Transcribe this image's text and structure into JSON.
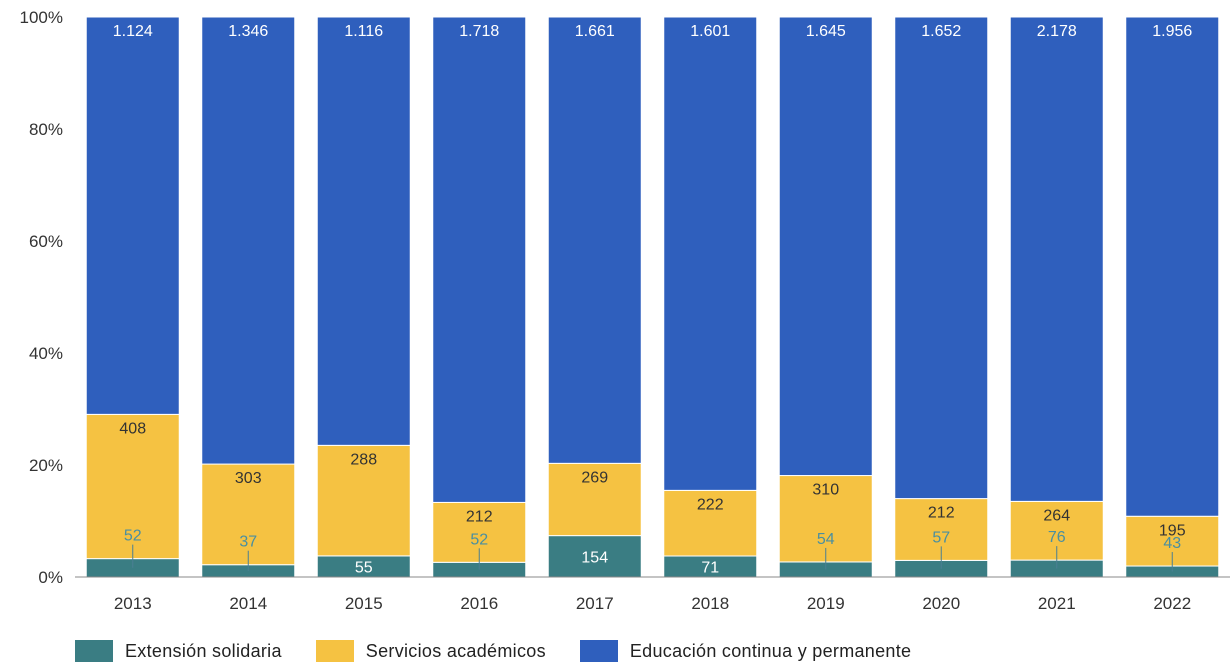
{
  "chart_data": {
    "type": "bar",
    "stacked": "percent",
    "categories": [
      "2013",
      "2014",
      "2015",
      "2016",
      "2017",
      "2018",
      "2019",
      "2020",
      "2021",
      "2022"
    ],
    "series": [
      {
        "name": "Extensión solidaria",
        "color": "#3a7d83",
        "values": [
          52,
          37,
          55,
          52,
          154,
          71,
          54,
          57,
          76,
          43
        ],
        "labels": [
          "52",
          "37",
          "55",
          "52",
          "154",
          "71",
          "54",
          "57",
          "76",
          "43"
        ]
      },
      {
        "name": "Servicios académicos",
        "color": "#f5c242",
        "values": [
          408,
          303,
          288,
          212,
          269,
          222,
          310,
          212,
          264,
          195
        ],
        "labels": [
          "408",
          "303",
          "288",
          "212",
          "269",
          "222",
          "310",
          "212",
          "264",
          "195"
        ]
      },
      {
        "name": "Educación continua y permanente",
        "color": "#2f5fbd",
        "values": [
          1124,
          1346,
          1116,
          1718,
          1661,
          1601,
          1645,
          1652,
          2178,
          1956
        ],
        "labels": [
          "1.124",
          "1.346",
          "1.116",
          "1.718",
          "1.661",
          "1.601",
          "1.645",
          "1.652",
          "2.178",
          "1.956"
        ]
      }
    ],
    "yticks": [
      "0%",
      "20%",
      "40%",
      "60%",
      "80%",
      "100%"
    ],
    "ylim": [
      0,
      100
    ],
    "grid": false,
    "legend_position": "bottom-left"
  }
}
